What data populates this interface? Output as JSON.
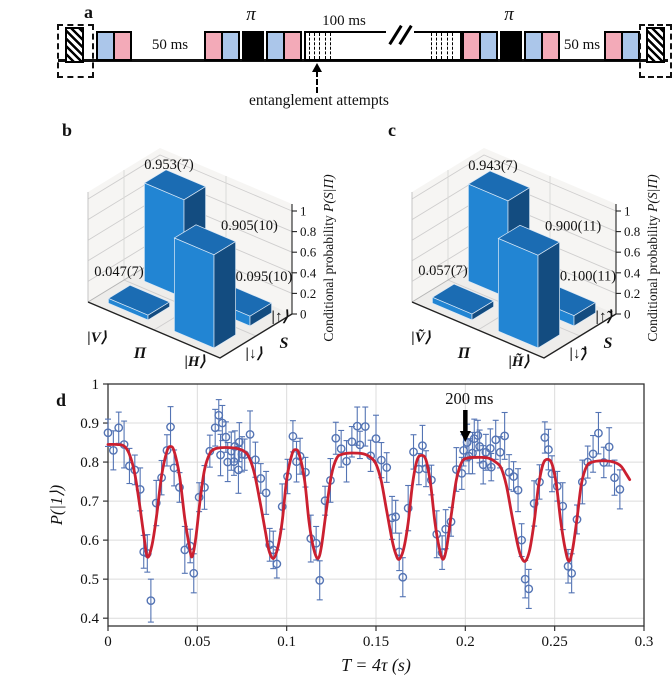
{
  "panel_labels": {
    "a": "a",
    "b": "b",
    "c": "c",
    "d": "d"
  },
  "colors": {
    "pulse_blue": "#abc6ea",
    "pulse_pink": "#f3aab8",
    "pulse_pi": "#000000",
    "bar_front": "#2285d3",
    "bar_side": "#134c80",
    "bar_top": "#1b6cb3",
    "fit_line": "#cb2030",
    "data_point": "#5474b4"
  },
  "panel_a": {
    "label": "a",
    "pi_label": "π",
    "gap_label_left": "50 ms",
    "gap_label_right": "50 ms",
    "window_label": "100 ms",
    "annotation": "entanglement attempts"
  },
  "chart_data": [
    {
      "panel": "b",
      "type": "bar",
      "projection": "3d",
      "zlabel_prefix": "Conditional probability ",
      "zlabel_math": "P(S|Π)",
      "x_axis_label": "Π",
      "y_axis_label": "S",
      "x_categories": [
        "|V⟩",
        "|H⟩"
      ],
      "y_categories": [
        "|↓⟩",
        "|↑⟩"
      ],
      "z_ticks": [
        "0",
        "0.2",
        "0.4",
        "0.6",
        "0.8",
        "1"
      ],
      "z_tick_values": [
        0,
        0.2,
        0.4,
        0.6,
        0.8,
        1
      ],
      "zlim": [
        0,
        1
      ],
      "bars": [
        {
          "xi": 0,
          "yi": 1,
          "x": "|V⟩",
          "y": "|↑⟩",
          "value": 0.953,
          "label": "0.953(7)"
        },
        {
          "xi": 1,
          "yi": 1,
          "x": "|H⟩",
          "y": "|↑⟩",
          "value": 0.095,
          "label": "0.095(10)"
        },
        {
          "xi": 0,
          "yi": 0,
          "x": "|V⟩",
          "y": "|↓⟩",
          "value": 0.047,
          "label": "0.047(7)"
        },
        {
          "xi": 1,
          "yi": 0,
          "x": "|H⟩",
          "y": "|↓⟩",
          "value": 0.905,
          "label": "0.905(10)"
        }
      ]
    },
    {
      "panel": "c",
      "type": "bar",
      "projection": "3d",
      "zlabel_prefix": "Conditional probability ",
      "zlabel_math": "P(S|Π)",
      "x_axis_label": "Π",
      "y_axis_label": "S",
      "x_categories": [
        "|Ṽ⟩",
        "|H̃⟩"
      ],
      "y_categories": [
        "|↓̃⟩",
        "|↑̃⟩"
      ],
      "z_ticks": [
        "0",
        "0.2",
        "0.4",
        "0.6",
        "0.8",
        "1"
      ],
      "z_tick_values": [
        0,
        0.2,
        0.4,
        0.6,
        0.8,
        1
      ],
      "zlim": [
        0,
        1
      ],
      "bars": [
        {
          "xi": 0,
          "yi": 1,
          "x": "|Ṽ⟩",
          "y": "|↑̃⟩",
          "value": 0.943,
          "label": "0.943(7)"
        },
        {
          "xi": 1,
          "yi": 1,
          "x": "|H̃⟩",
          "y": "|↑̃⟩",
          "value": 0.1,
          "label": "0.100(11)"
        },
        {
          "xi": 0,
          "yi": 0,
          "x": "|Ṽ⟩",
          "y": "|↓̃⟩",
          "value": 0.057,
          "label": "0.057(7)"
        },
        {
          "xi": 1,
          "yi": 0,
          "x": "|H̃⟩",
          "y": "|↓̃⟩",
          "value": 0.9,
          "label": "0.900(11)"
        }
      ]
    },
    {
      "panel": "d",
      "type": "scatter",
      "xlabel": "T = 4τ (s)",
      "ylabel": "P(|1⟩)",
      "xlim": [
        0,
        0.3
      ],
      "ylim": [
        0.38,
        1.0
      ],
      "x_ticks": [
        0,
        0.05,
        0.1,
        0.15,
        0.2,
        0.25,
        0.3
      ],
      "x_tick_labels": [
        "0",
        "0.05",
        "0.1",
        "0.15",
        "0.2",
        "0.25",
        "0.3"
      ],
      "y_ticks": [
        0.4,
        0.5,
        0.6,
        0.7,
        0.8,
        0.9,
        1
      ],
      "y_tick_labels": [
        "0.4",
        "0.5",
        "0.6",
        "0.7",
        "0.8",
        "0.9",
        "1"
      ],
      "grid": true,
      "annotation": {
        "text": "200 ms",
        "x": 0.2
      },
      "fit_color": "#cb2030",
      "point_color": "#5474b4",
      "fit_curve": [
        [
          0,
          0.845
        ],
        [
          0.005,
          0.845
        ],
        [
          0.009,
          0.841
        ],
        [
          0.012,
          0.82
        ],
        [
          0.015,
          0.77
        ],
        [
          0.018,
          0.68
        ],
        [
          0.02,
          0.615
        ],
        [
          0.022,
          0.557
        ],
        [
          0.0245,
          0.585
        ],
        [
          0.027,
          0.655
        ],
        [
          0.03,
          0.765
        ],
        [
          0.033,
          0.828
        ],
        [
          0.035,
          0.84
        ],
        [
          0.037,
          0.828
        ],
        [
          0.04,
          0.765
        ],
        [
          0.043,
          0.655
        ],
        [
          0.0455,
          0.585
        ],
        [
          0.047,
          0.557
        ],
        [
          0.049,
          0.6
        ],
        [
          0.0515,
          0.7
        ],
        [
          0.054,
          0.78
        ],
        [
          0.057,
          0.822
        ],
        [
          0.06,
          0.834
        ],
        [
          0.064,
          0.837
        ],
        [
          0.068,
          0.837
        ],
        [
          0.072,
          0.835
        ],
        [
          0.076,
          0.828
        ],
        [
          0.079,
          0.812
        ],
        [
          0.082,
          0.77
        ],
        [
          0.085,
          0.7
        ],
        [
          0.088,
          0.625
        ],
        [
          0.09,
          0.575
        ],
        [
          0.0925,
          0.553
        ],
        [
          0.095,
          0.58
        ],
        [
          0.0975,
          0.648
        ],
        [
          0.1,
          0.755
        ],
        [
          0.103,
          0.82
        ],
        [
          0.105,
          0.832
        ],
        [
          0.107,
          0.82
        ],
        [
          0.11,
          0.755
        ],
        [
          0.1125,
          0.648
        ],
        [
          0.115,
          0.58
        ],
        [
          0.1175,
          0.553
        ],
        [
          0.1195,
          0.585
        ],
        [
          0.122,
          0.67
        ],
        [
          0.125,
          0.765
        ],
        [
          0.128,
          0.81
        ],
        [
          0.131,
          0.82
        ],
        [
          0.135,
          0.823
        ],
        [
          0.139,
          0.823
        ],
        [
          0.143,
          0.821
        ],
        [
          0.147,
          0.812
        ],
        [
          0.15,
          0.795
        ],
        [
          0.153,
          0.75
        ],
        [
          0.156,
          0.675
        ],
        [
          0.159,
          0.6
        ],
        [
          0.161,
          0.565
        ],
        [
          0.163,
          0.551
        ],
        [
          0.1655,
          0.578
        ],
        [
          0.168,
          0.645
        ],
        [
          0.1705,
          0.745
        ],
        [
          0.173,
          0.805
        ],
        [
          0.1755,
          0.817
        ],
        [
          0.178,
          0.805
        ],
        [
          0.1805,
          0.745
        ],
        [
          0.183,
          0.645
        ],
        [
          0.1855,
          0.578
        ],
        [
          0.1875,
          0.551
        ],
        [
          0.1895,
          0.58
        ],
        [
          0.192,
          0.66
        ],
        [
          0.195,
          0.755
        ],
        [
          0.198,
          0.8
        ],
        [
          0.201,
          0.81
        ],
        [
          0.205,
          0.812
        ],
        [
          0.209,
          0.812
        ],
        [
          0.213,
          0.81
        ],
        [
          0.217,
          0.8
        ],
        [
          0.22,
          0.785
        ],
        [
          0.223,
          0.74
        ],
        [
          0.226,
          0.665
        ],
        [
          0.229,
          0.595
        ],
        [
          0.231,
          0.56
        ],
        [
          0.2335,
          0.546
        ],
        [
          0.236,
          0.575
        ],
        [
          0.2385,
          0.645
        ],
        [
          0.241,
          0.74
        ],
        [
          0.2435,
          0.795
        ],
        [
          0.246,
          0.807
        ],
        [
          0.2485,
          0.795
        ],
        [
          0.251,
          0.74
        ],
        [
          0.2535,
          0.645
        ],
        [
          0.256,
          0.575
        ],
        [
          0.258,
          0.546
        ],
        [
          0.26,
          0.575
        ],
        [
          0.2625,
          0.655
        ],
        [
          0.265,
          0.745
        ],
        [
          0.268,
          0.79
        ],
        [
          0.271,
          0.8
        ],
        [
          0.275,
          0.803
        ],
        [
          0.279,
          0.803
        ],
        [
          0.283,
          0.8
        ],
        [
          0.287,
          0.79
        ],
        [
          0.29,
          0.77
        ],
        [
          0.292,
          0.755
        ]
      ],
      "points": [
        [
          0,
          0.875,
          0.035
        ],
        [
          0.003,
          0.83,
          0.05
        ],
        [
          0.006,
          0.888,
          0.04
        ],
        [
          0.009,
          0.845,
          0.06
        ],
        [
          0.012,
          0.79,
          0.045
        ],
        [
          0.015,
          0.78,
          0.038
        ],
        [
          0.018,
          0.73,
          0.055
        ],
        [
          0.02,
          0.57,
          0.042
        ],
        [
          0.022,
          0.566,
          0.048
        ],
        [
          0.024,
          0.445,
          0.055
        ],
        [
          0.027,
          0.695,
          0.058
        ],
        [
          0.03,
          0.76,
          0.044
        ],
        [
          0.033,
          0.83,
          0.04
        ],
        [
          0.035,
          0.89,
          0.052
        ],
        [
          0.037,
          0.785,
          0.046
        ],
        [
          0.04,
          0.735,
          0.038
        ],
        [
          0.043,
          0.575,
          0.06
        ],
        [
          0.046,
          0.585,
          0.043
        ],
        [
          0.048,
          0.515,
          0.05
        ],
        [
          0.051,
          0.71,
          0.037
        ],
        [
          0.054,
          0.735,
          0.056
        ],
        [
          0.057,
          0.828,
          0.041
        ],
        [
          0.06,
          0.888,
          0.047
        ],
        [
          0.062,
          0.92,
          0.04
        ],
        [
          0.063,
          0.818,
          0.053
        ],
        [
          0.064,
          0.9,
          0.045
        ],
        [
          0.066,
          0.864,
          0.039
        ],
        [
          0.067,
          0.8,
          0.05
        ],
        [
          0.069,
          0.828,
          0.049
        ],
        [
          0.071,
          0.84,
          0.04
        ],
        [
          0.073,
          0.78,
          0.06
        ],
        [
          0.075,
          0.82,
          0.045
        ],
        [
          0.0705,
          0.801,
          0.035
        ],
        [
          0.0735,
          0.851,
          0.05
        ],
        [
          0.0765,
          0.819,
          0.04
        ],
        [
          0.0795,
          0.871,
          0.06
        ],
        [
          0.0825,
          0.806,
          0.045
        ],
        [
          0.0855,
          0.758,
          0.038
        ],
        [
          0.0885,
          0.721,
          0.055
        ],
        [
          0.0905,
          0.588,
          0.042
        ],
        [
          0.0925,
          0.575,
          0.048
        ],
        [
          0.0945,
          0.539,
          0.036
        ],
        [
          0.0975,
          0.686,
          0.058
        ],
        [
          0.1005,
          0.763,
          0.044
        ],
        [
          0.1035,
          0.866,
          0.04
        ],
        [
          0.1055,
          0.801,
          0.052
        ],
        [
          0.1075,
          0.815,
          0.046
        ],
        [
          0.1105,
          0.774,
          0.038
        ],
        [
          0.1135,
          0.604,
          0.06
        ],
        [
          0.1165,
          0.592,
          0.043
        ],
        [
          0.1185,
          0.497,
          0.05
        ],
        [
          0.1215,
          0.701,
          0.037
        ],
        [
          0.1245,
          0.753,
          0.056
        ],
        [
          0.1275,
          0.861,
          0.041
        ],
        [
          0.1305,
          0.834,
          0.047
        ],
        [
          0.1335,
          0.802,
          0.053
        ],
        [
          0.1365,
          0.852,
          0.039
        ],
        [
          0.1395,
          0.892,
          0.049
        ],
        [
          0.141,
          0.844,
          0.035
        ],
        [
          0.144,
          0.891,
          0.05
        ],
        [
          0.147,
          0.816,
          0.04
        ],
        [
          0.15,
          0.86,
          0.06
        ],
        [
          0.153,
          0.805,
          0.045
        ],
        [
          0.156,
          0.786,
          0.038
        ],
        [
          0.159,
          0.657,
          0.055
        ],
        [
          0.161,
          0.66,
          0.042
        ],
        [
          0.163,
          0.57,
          0.048
        ],
        [
          0.165,
          0.505,
          0.05
        ],
        [
          0.168,
          0.682,
          0.058
        ],
        [
          0.171,
          0.826,
          0.044
        ],
        [
          0.174,
          0.782,
          0.04
        ],
        [
          0.176,
          0.842,
          0.052
        ],
        [
          0.178,
          0.783,
          0.046
        ],
        [
          0.181,
          0.754,
          0.038
        ],
        [
          0.184,
          0.615,
          0.06
        ],
        [
          0.187,
          0.568,
          0.043
        ],
        [
          0.189,
          0.628,
          0.05
        ],
        [
          0.192,
          0.647,
          0.037
        ],
        [
          0.195,
          0.781,
          0.056
        ],
        [
          0.198,
          0.771,
          0.041
        ],
        [
          0.199,
          0.83,
          0.04
        ],
        [
          0.201,
          0.85,
          0.047
        ],
        [
          0.202,
          0.815,
          0.045
        ],
        [
          0.204,
          0.823,
          0.053
        ],
        [
          0.205,
          0.86,
          0.05
        ],
        [
          0.207,
          0.868,
          0.039
        ],
        [
          0.208,
          0.84,
          0.042
        ],
        [
          0.21,
          0.793,
          0.049
        ],
        [
          0.2115,
          0.825,
          0.046
        ],
        [
          0.214,
          0.835,
          0.05
        ],
        [
          0.2145,
          0.787,
          0.035
        ],
        [
          0.217,
          0.857,
          0.05
        ],
        [
          0.2195,
          0.825,
          0.04
        ],
        [
          0.222,
          0.867,
          0.06
        ],
        [
          0.2245,
          0.774,
          0.045
        ],
        [
          0.227,
          0.763,
          0.038
        ],
        [
          0.2295,
          0.728,
          0.055
        ],
        [
          0.2315,
          0.6,
          0.042
        ],
        [
          0.2335,
          0.5,
          0.048
        ],
        [
          0.2355,
          0.475,
          0.05
        ],
        [
          0.2385,
          0.694,
          0.058
        ],
        [
          0.2415,
          0.749,
          0.044
        ],
        [
          0.2445,
          0.863,
          0.04
        ],
        [
          0.2465,
          0.832,
          0.052
        ],
        [
          0.2485,
          0.77,
          0.046
        ],
        [
          0.2515,
          0.738,
          0.038
        ],
        [
          0.2545,
          0.687,
          0.06
        ],
        [
          0.2575,
          0.533,
          0.043
        ],
        [
          0.2595,
          0.515,
          0.05
        ],
        [
          0.2625,
          0.653,
          0.037
        ],
        [
          0.2655,
          0.749,
          0.056
        ],
        [
          0.2685,
          0.8,
          0.041
        ],
        [
          0.2715,
          0.821,
          0.047
        ],
        [
          0.2745,
          0.874,
          0.053
        ],
        [
          0.2775,
          0.799,
          0.039
        ],
        [
          0.2805,
          0.839,
          0.049
        ],
        [
          0.2835,
          0.76,
          0.045
        ],
        [
          0.2865,
          0.73,
          0.05
        ]
      ]
    }
  ]
}
